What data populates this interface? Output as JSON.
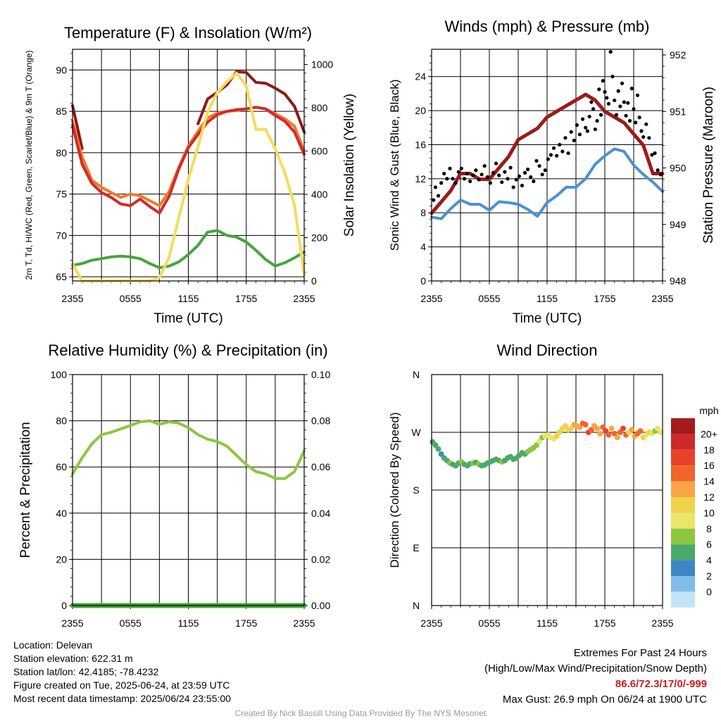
{
  "chart_data": [
    {
      "type": "line",
      "title": "Temperature (F) & Insolation (W/m²)",
      "xlabel": "Time (UTC)",
      "ylabel": "2m T, Td, HI/WC (Red, Green, Scarlet/Blue) & 9m T (Orange)",
      "ylabel_right": "Solar Insolation (Yellow)",
      "x_ticks": [
        "2355",
        "0555",
        "1155",
        "1755",
        "2355"
      ],
      "ylim": [
        64.5,
        92.5
      ],
      "ylim_right": [
        0,
        1070
      ],
      "y_ticks": [
        65,
        70,
        75,
        80,
        85,
        90
      ],
      "y_ticks_right": [
        0,
        200,
        400,
        600,
        800,
        1000
      ],
      "hours": [
        0,
        1,
        2,
        3,
        4,
        5,
        6,
        7,
        8,
        9,
        10,
        11,
        12,
        13,
        14,
        15,
        16,
        17,
        18,
        19,
        20,
        21,
        22,
        23,
        24
      ],
      "series": [
        {
          "axis": "left",
          "color": "#8b1a1a",
          "values": [
            85.7,
            80.5,
            null,
            null,
            null,
            null,
            null,
            null,
            null,
            null,
            null,
            null,
            null,
            83.5,
            86.5,
            87.3,
            88.2,
            89.8,
            89.7,
            88.5,
            88.4,
            87.8,
            87.1,
            85.6,
            82.5
          ]
        },
        {
          "axis": "left",
          "color": "#f07b2a",
          "values": [
            83.8,
            79.5,
            76.7,
            75.8,
            75.2,
            74.6,
            75.0,
            74.8,
            74.2,
            73.6,
            75.3,
            78.2,
            80.8,
            82.6,
            84.2,
            84.8,
            85.0,
            85.1,
            85.3,
            85.5,
            85.3,
            84.7,
            84.1,
            83.2,
            80.2
          ]
        },
        {
          "axis": "left",
          "color": "#d42a2a",
          "values": [
            83.3,
            78.6,
            76.3,
            75.2,
            74.6,
            73.8,
            73.6,
            74.4,
            73.5,
            72.7,
            74.7,
            78.0,
            80.6,
            82.2,
            83.7,
            84.6,
            85.0,
            85.2,
            85.3,
            85.5,
            85.3,
            84.5,
            83.8,
            82.5,
            79.8
          ]
        },
        {
          "axis": "left",
          "color": "#46a53c",
          "values": [
            66.4,
            66.6,
            67.0,
            67.2,
            67.4,
            67.5,
            67.4,
            67.2,
            66.6,
            66.1,
            66.3,
            66.8,
            67.7,
            68.8,
            70.4,
            70.6,
            70.0,
            69.8,
            69.2,
            68.2,
            67.1,
            66.3,
            66.7,
            67.3,
            68.0
          ]
        },
        {
          "axis": "right",
          "color": "#f6dc5b",
          "values": [
            80,
            0,
            0,
            0,
            0,
            0,
            0,
            0,
            0,
            15,
            110,
            290,
            470,
            620,
            780,
            870,
            920,
            960,
            900,
            700,
            700,
            610,
            500,
            350,
            30
          ]
        }
      ]
    },
    {
      "type": "line",
      "title": "Winds (mph) & Pressure (mb)",
      "xlabel": "Time (UTC)",
      "ylabel": "Sonic Wind & Gust (Blue, Black)",
      "ylabel_right": "Station Pressure (Maroon)",
      "x_ticks": [
        "2355",
        "0555",
        "1155",
        "1755",
        "2355"
      ],
      "ylim": [
        0,
        27.2
      ],
      "ylim_right": [
        948,
        952.1
      ],
      "y_ticks": [
        0,
        4,
        8,
        12,
        16,
        20,
        24
      ],
      "y_ticks_right": [
        948,
        949,
        950,
        951,
        952
      ],
      "hours": [
        0,
        1,
        2,
        3,
        4,
        5,
        6,
        7,
        8,
        9,
        10,
        11,
        12,
        13,
        14,
        15,
        16,
        17,
        18,
        19,
        20,
        21,
        22,
        23,
        24
      ],
      "series": [
        {
          "axis": "left",
          "color": "#4a92d0",
          "values": [
            7.5,
            7.3,
            8.5,
            9.5,
            9.0,
            9.0,
            8.3,
            9.3,
            9.2,
            9.0,
            8.4,
            7.6,
            9.2,
            10.0,
            11.0,
            11.0,
            12.0,
            13.7,
            14.7,
            15.5,
            15.2,
            13.6,
            12.5,
            11.6,
            10.5
          ]
        },
        {
          "axis": "right",
          "color": "#9c1a1a",
          "values": [
            949.2,
            949.4,
            949.6,
            949.9,
            949.9,
            949.8,
            949.8,
            950.0,
            950.2,
            950.5,
            950.6,
            950.7,
            950.9,
            951.0,
            951.1,
            951.2,
            951.3,
            951.2,
            951.0,
            950.9,
            950.8,
            950.6,
            950.4,
            949.9,
            949.9
          ]
        }
      ],
      "gust_scatter": {
        "color": "#000000",
        "hours": [
          0.2,
          0.4,
          0.7,
          1.0,
          1.3,
          1.6,
          1.9,
          2.2,
          2.5,
          2.8,
          3.1,
          3.4,
          3.7,
          4.0,
          4.3,
          4.6,
          4.9,
          5.2,
          5.5,
          5.8,
          6.1,
          6.4,
          6.7,
          7.0,
          7.3,
          7.6,
          7.9,
          8.2,
          8.5,
          8.8,
          9.1,
          9.4,
          9.7,
          10.0,
          10.3,
          10.6,
          10.9,
          11.2,
          11.5,
          11.8,
          12.1,
          12.4,
          12.7,
          13.0,
          13.3,
          13.6,
          13.9,
          14.2,
          14.5,
          14.8,
          15.1,
          15.4,
          15.7,
          16.0,
          16.2,
          16.4,
          16.6,
          16.8,
          17.0,
          17.2,
          17.4,
          17.6,
          17.8,
          18.0,
          18.2,
          18.4,
          18.6,
          18.8,
          19.0,
          19.2,
          19.4,
          19.6,
          19.8,
          20.0,
          20.2,
          20.4,
          20.6,
          20.8,
          21.0,
          21.2,
          21.4,
          21.6,
          21.8,
          22.0,
          22.3,
          22.6,
          22.9,
          23.2,
          23.5,
          23.8
        ],
        "values": [
          9.5,
          11.0,
          10.0,
          11.5,
          12.6,
          12.0,
          13.2,
          12.0,
          11.5,
          12.8,
          13.2,
          12.0,
          12.6,
          11.7,
          12.4,
          13.0,
          11.9,
          12.5,
          13.5,
          12.2,
          11.5,
          12.7,
          13.8,
          12.4,
          11.6,
          12.8,
          12.0,
          13.3,
          11.0,
          11.9,
          12.3,
          11.2,
          12.7,
          13.1,
          12.2,
          11.7,
          14.1,
          13.5,
          12.5,
          13.0,
          14.3,
          14.8,
          15.6,
          14.7,
          16.0,
          15.2,
          16.8,
          15.0,
          17.5,
          16.5,
          18.3,
          17.2,
          19.0,
          18.0,
          17.6,
          19.3,
          21.0,
          20.2,
          17.8,
          18.8,
          22.5,
          19.5,
          23.5,
          22.2,
          21.5,
          20.8,
          26.9,
          24.0,
          21.2,
          19.5,
          22.3,
          20.5,
          23.2,
          21.0,
          19.4,
          20.9,
          18.8,
          22.6,
          20.2,
          18.6,
          21.8,
          19.2,
          17.6,
          16.9,
          18.4,
          16.8,
          14.8,
          15.0,
          13.0,
          12.5
        ]
      }
    },
    {
      "type": "line",
      "title": "Relative Humidity (%) & Precipitation (in)",
      "xlabel": "",
      "ylabel": "Percent & Precipitation",
      "x_ticks": [
        "2355",
        "0555",
        "1155",
        "1755",
        "2355"
      ],
      "ylim": [
        0,
        100
      ],
      "ylim_right": [
        0,
        0.1
      ],
      "y_ticks": [
        0,
        20,
        40,
        60,
        80,
        100
      ],
      "y_ticks_right": [
        "0.00",
        "0.02",
        "0.04",
        "0.06",
        "0.08",
        "0.10"
      ],
      "hours": [
        0,
        1,
        2,
        3,
        4,
        5,
        6,
        7,
        8,
        9,
        10,
        11,
        12,
        13,
        14,
        15,
        16,
        17,
        18,
        19,
        20,
        21,
        22,
        23,
        24
      ],
      "series": [
        {
          "axis": "left",
          "color": "#8cc63f",
          "values": [
            57,
            64,
            70,
            74,
            75,
            76.5,
            78,
            79.5,
            80,
            78.5,
            79.5,
            79,
            77,
            74,
            72,
            71,
            69,
            65,
            61,
            58,
            57,
            55,
            55,
            58,
            67
          ]
        },
        {
          "axis": "right",
          "color": "#46a53c",
          "values": [
            0,
            0,
            0,
            0,
            0,
            0,
            0,
            0,
            0,
            0,
            0,
            0,
            0,
            0,
            0,
            0,
            0,
            0,
            0,
            0,
            0,
            0,
            0,
            0,
            0
          ]
        }
      ]
    },
    {
      "type": "scatter",
      "title": "Wind Direction",
      "xlabel": "",
      "ylabel": "Direction (Colored By Speed)",
      "x_ticks": [
        "2355",
        "0555",
        "1155",
        "1755",
        "2355"
      ],
      "y_ticks": [
        "N",
        "E",
        "S",
        "W",
        "N"
      ],
      "ylim": [
        0,
        360
      ],
      "legend": {
        "title": "mph",
        "position": "right",
        "labels": [
          "20+",
          "18",
          "16",
          "14",
          "12",
          "10",
          "8",
          "6",
          "4",
          "2",
          "0"
        ],
        "colors": [
          "#a51b1b",
          "#cf2a2a",
          "#e8432a",
          "#f0652b",
          "#f7a545",
          "#f0d24a",
          "#ebe56a",
          "#8cc63f",
          "#4aa96c",
          "#3d86c6",
          "#7fbde8",
          "#c2e4f7"
        ]
      },
      "hours": [
        0.1,
        0.4,
        0.7,
        1.0,
        1.3,
        1.6,
        1.9,
        2.2,
        2.5,
        2.8,
        3.1,
        3.4,
        3.7,
        4.0,
        4.3,
        4.6,
        4.9,
        5.2,
        5.5,
        5.8,
        6.1,
        6.4,
        6.7,
        7.0,
        7.3,
        7.6,
        7.9,
        8.2,
        8.5,
        8.8,
        9.1,
        9.4,
        9.7,
        10.0,
        10.3,
        10.6,
        10.9,
        11.2,
        11.5,
        11.8,
        12.1,
        12.4,
        12.7,
        13.0,
        13.3,
        13.6,
        13.9,
        14.2,
        14.5,
        14.8,
        15.1,
        15.4,
        15.7,
        16.0,
        16.3,
        16.6,
        16.9,
        17.2,
        17.5,
        17.8,
        18.1,
        18.4,
        18.7,
        19.0,
        19.3,
        19.6,
        19.9,
        20.2,
        20.5,
        20.8,
        21.1,
        21.4,
        21.7,
        22.0,
        22.3,
        22.6,
        22.9,
        23.2,
        23.5,
        23.8
      ],
      "directions": [
        255,
        250,
        244,
        236,
        230,
        226,
        222,
        220,
        218,
        222,
        224,
        220,
        218,
        221,
        222,
        223,
        220,
        218,
        219,
        222,
        224,
        226,
        228,
        226,
        224,
        226,
        230,
        232,
        228,
        230,
        234,
        238,
        236,
        240,
        243,
        246,
        250,
        256,
        262,
        264,
        266,
        262,
        260,
        264,
        270,
        276,
        280,
        274,
        276,
        282,
        280,
        278,
        284,
        282,
        270,
        274,
        280,
        276,
        268,
        278,
        272,
        266,
        276,
        268,
        262,
        270,
        276,
        266,
        270,
        274,
        264,
        268,
        272,
        262,
        266,
        270,
        268,
        272,
        276,
        270
      ],
      "speeds": [
        7,
        6,
        6,
        5,
        7,
        7,
        8,
        7,
        7,
        7,
        8,
        6,
        7,
        7,
        8,
        7,
        8,
        7,
        6,
        7,
        7,
        7,
        7,
        7,
        8,
        7,
        7,
        6,
        7,
        7,
        6,
        7,
        7,
        8,
        8,
        9,
        8,
        10,
        9,
        10,
        10,
        10,
        11,
        12,
        12,
        12,
        13,
        13,
        12,
        14,
        15,
        14,
        16,
        17,
        18,
        16,
        14,
        15,
        14,
        16,
        18,
        17,
        15,
        16,
        14,
        17,
        18,
        16,
        13,
        15,
        14,
        16,
        17,
        13,
        11,
        12,
        10,
        9,
        10,
        11
      ]
    }
  ],
  "info": {
    "location": "Location: Delevan",
    "elevation": "Station elevation: 622.31 m",
    "latlon": "Station lat/lon: 42.4185; -78.4232",
    "created": "Figure created on Tue, 2025-06-24, at 23:59 UTC",
    "recent": "Most recent data timestamp: 2025/06/24 23:55:00"
  },
  "extremes": {
    "title": "Extremes For Past 24 Hours",
    "subtitle": "(High/Low/Max Wind/Precipitation/Snow Depth)",
    "values": "86.6/72.3/17/0/-999",
    "gust": "Max Gust: 26.9 mph On 06/24 at 1900 UTC"
  },
  "credit": "Created By Nick Bassill Using Data Provided By The NYS Mesonet"
}
